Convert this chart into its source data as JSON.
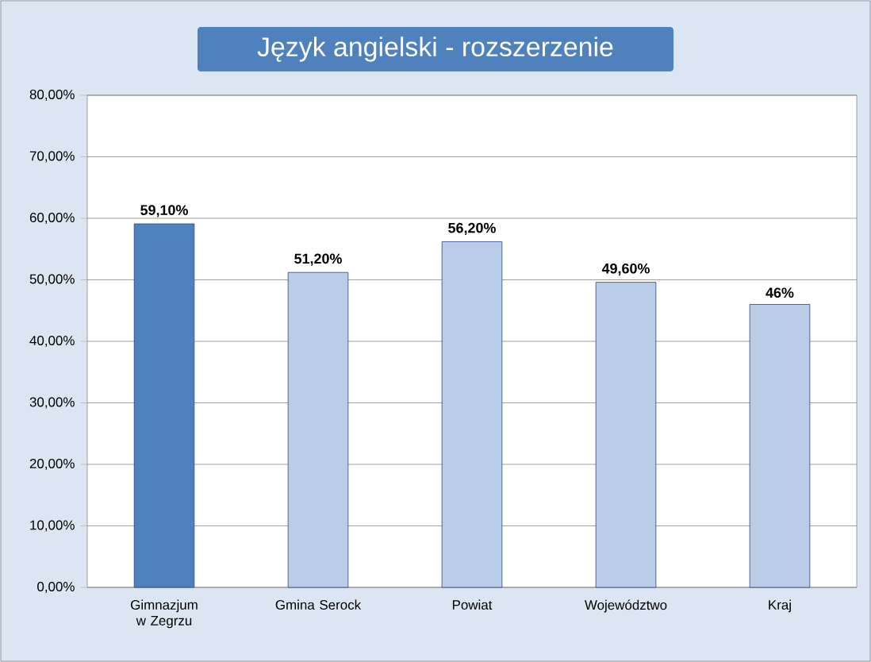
{
  "chart_data": {
    "type": "bar",
    "title": "Język angielski - rozszerzenie",
    "categories": [
      "Gimnazjum w Zegrzu",
      "Gmina Serock",
      "Powiat",
      "Województwo",
      "Kraj"
    ],
    "values": [
      59.1,
      51.2,
      56.2,
      49.6,
      46
    ],
    "colors": [
      "#4f81bd",
      "#b9cde8",
      "#b9cde8",
      "#b9cde8",
      "#b9cde8"
    ],
    "value_labels": [
      "59,10%",
      "51,20%",
      "56,20%",
      "49,60%",
      "46%"
    ],
    "ylim": [
      0,
      80
    ],
    "yticks": [
      {
        "value": 0,
        "label": "0,00%"
      },
      {
        "value": 10,
        "label": "10,00%"
      },
      {
        "value": 20,
        "label": "20,00%"
      },
      {
        "value": 30,
        "label": "30,00%"
      },
      {
        "value": 40,
        "label": "40,00%"
      },
      {
        "value": 50,
        "label": "50,00%"
      },
      {
        "value": 60,
        "label": "60,00%"
      },
      {
        "value": 70,
        "label": "70,00%"
      },
      {
        "value": 80,
        "label": "80,00%"
      }
    ],
    "grid": "y"
  }
}
